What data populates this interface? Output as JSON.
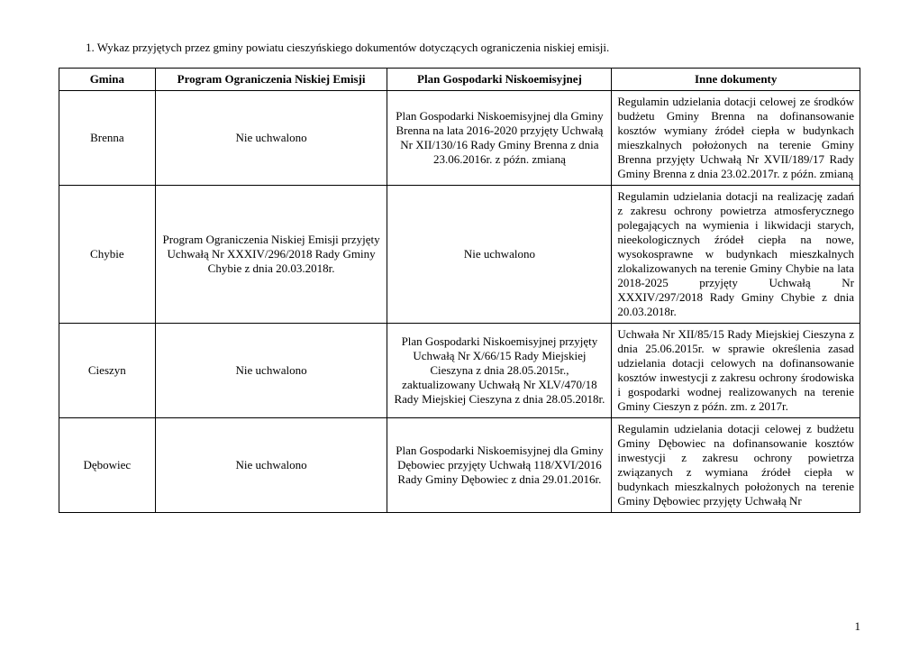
{
  "title": "1.   Wykaz przyjętych przez gminy powiatu cieszyńskiego dokumentów dotyczących ograniczenia niskiej emisji.",
  "columns": {
    "gmina": "Gmina",
    "program": "Program Ograniczenia Niskiej Emisji",
    "plan": "Plan Gospodarki Niskoemisyjnej",
    "inne": "Inne dokumenty"
  },
  "rows": [
    {
      "gmina": "Brenna",
      "program": "Nie uchwalono",
      "plan": "Plan Gospodarki Niskoemisyjnej dla Gminy Brenna na lata 2016-2020 przyjęty Uchwałą Nr XII/130/16 Rady Gminy Brenna z dnia 23.06.2016r. z późn. zmianą",
      "inne": "Regulamin udzielania dotacji celowej ze środków budżetu Gminy Brenna na dofinansowanie kosztów wymiany źródeł ciepła w budynkach mieszkalnych położonych na terenie Gminy Brenna przyjęty Uchwałą Nr XVII/189/17 Rady Gminy Brenna z dnia 23.02.2017r. z późn. zmianą"
    },
    {
      "gmina": "Chybie",
      "program": "Program Ograniczenia Niskiej Emisji przyjęty Uchwałą Nr XXXIV/296/2018 Rady Gminy Chybie z dnia 20.03.2018r.",
      "plan": "Nie uchwalono",
      "inne": "Regulamin udzielania dotacji na realizację zadań z zakresu ochrony powietrza atmosferycznego polegających na wymienia i likwidacji starych, nieekologicznych źródeł ciepła na nowe, wysokosprawne w budynkach mieszkalnych zlokalizowanych na terenie Gminy Chybie na lata 2018-2025 przyjęty Uchwałą Nr XXXIV/297/2018 Rady Gminy Chybie z dnia 20.03.2018r."
    },
    {
      "gmina": "Cieszyn",
      "program": "Nie uchwalono",
      "plan": "Plan Gospodarki Niskoemisyjnej przyjęty Uchwałą Nr X/66/15 Rady Miejskiej Cieszyna z dnia 28.05.2015r., zaktualizowany Uchwałą Nr XLV/470/18 Rady Miejskiej Cieszyna z dnia 28.05.2018r.",
      "inne": "Uchwała Nr XII/85/15 Rady Miejskiej Cieszyna z dnia 25.06.2015r. w sprawie określenia zasad udzielania dotacji celowych na dofinansowanie kosztów inwestycji z zakresu ochrony środowiska i gospodarki wodnej realizowanych na terenie Gminy Cieszyn z późn. zm. z 2017r."
    },
    {
      "gmina": "Dębowiec",
      "program": "Nie uchwalono",
      "plan": "Plan Gospodarki Niskoemisyjnej dla Gminy Dębowiec przyjęty Uchwałą 118/XVI/2016 Rady Gminy Dębowiec z dnia 29.01.2016r.",
      "inne": "Regulamin udzielania dotacji celowej z budżetu Gminy Dębowiec na dofinansowanie kosztów inwestycji z zakresu ochrony powietrza związanych z wymiana źródeł ciepła w budynkach mieszkalnych położonych na terenie Gminy Dębowiec przyjęty Uchwałą Nr"
    }
  ],
  "pageNumber": "1"
}
